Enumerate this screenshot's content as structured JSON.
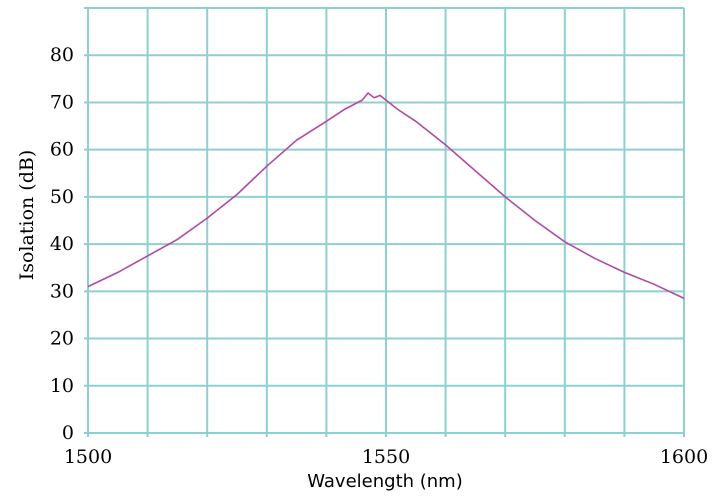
{
  "chart_data": {
    "type": "line",
    "title": "",
    "xlabel": "Wavelength (nm)",
    "ylabel": "Isolation (dB)",
    "xlim": [
      1500,
      1600
    ],
    "ylim": [
      0,
      90
    ],
    "x_ticks": [
      "1500",
      "1550",
      "1600"
    ],
    "y_ticks": [
      "0",
      "10",
      "20",
      "30",
      "40",
      "50",
      "60",
      "70",
      "80"
    ],
    "grid": true,
    "colors": {
      "grid": "#8fcfd1",
      "line": "#b04aa8"
    },
    "series": [
      {
        "x": [
          1500,
          1505,
          1510,
          1515,
          1520,
          1525,
          1530,
          1535,
          1540,
          1543,
          1546,
          1547,
          1548,
          1549,
          1550,
          1552,
          1555,
          1560,
          1565,
          1570,
          1575,
          1580,
          1585,
          1590,
          1595,
          1600
        ],
        "y": [
          31,
          34,
          37.5,
          41,
          45.5,
          50.5,
          56.5,
          62,
          66,
          68.5,
          70.5,
          72,
          71,
          71.5,
          70.5,
          68.5,
          66,
          61,
          55.5,
          50,
          45,
          40.5,
          37,
          34,
          31.5,
          28.5
        ]
      }
    ]
  }
}
